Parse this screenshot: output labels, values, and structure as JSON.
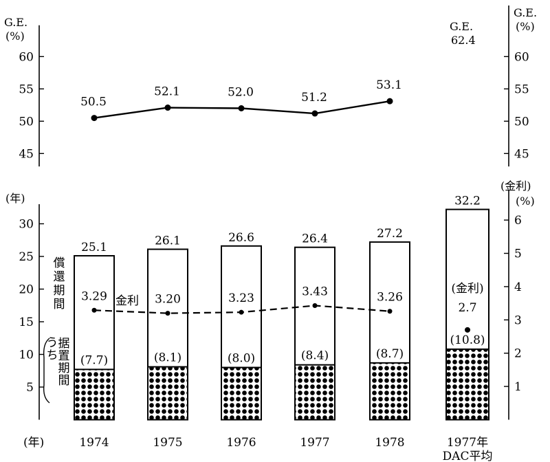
{
  "chart_data": {
    "type": "bar",
    "categories": [
      "1974",
      "1975",
      "1976",
      "1977",
      "1978",
      "1977年DAC平均"
    ],
    "x_tick_labels": [
      [
        "1974"
      ],
      [
        "1975"
      ],
      [
        "1976"
      ],
      [
        "1977"
      ],
      [
        "1978"
      ],
      [
        "1977年",
        "DAC平均"
      ]
    ],
    "x_unit_label": "(年)",
    "upper_panel": {
      "type": "line",
      "left_axis_label": [
        "G.E.",
        "(%)"
      ],
      "right_axis_label": [
        "G.E.",
        "(%)"
      ],
      "ylim": [
        43,
        64
      ],
      "ticks": [
        45,
        50,
        55,
        60
      ],
      "series": [
        {
          "values": [
            50.5,
            52.1,
            52.0,
            51.2,
            53.1
          ],
          "labels": [
            "50.5",
            "52.1",
            "52.0",
            "51.2",
            "53.1"
          ]
        }
      ],
      "dac_annotation": [
        "G.E.",
        "62.4"
      ]
    },
    "lower_panel": {
      "left_axis_label": "(年)",
      "left_ylim": [
        0,
        33
      ],
      "left_ticks": [
        5,
        10,
        15,
        20,
        25,
        30
      ],
      "right_axis_label": [
        "(金利)",
        "(%)"
      ],
      "right_ylim": [
        0,
        6.6
      ],
      "right_ticks": [
        1,
        2,
        3,
        4,
        5,
        6
      ],
      "repayment_period": {
        "label": "償還期間",
        "values": [
          25.1,
          26.1,
          26.6,
          26.4,
          27.2,
          32.2
        ],
        "labels": [
          "25.1",
          "26.1",
          "26.6",
          "26.4",
          "27.2",
          "32.2"
        ]
      },
      "grace_period": {
        "label_prefix": "うち",
        "label": "据置期間",
        "values": [
          7.7,
          8.1,
          8.0,
          8.4,
          8.7,
          10.8
        ],
        "labels": [
          "(7.7)",
          "(8.1)",
          "(8.0)",
          "(8.4)",
          "(8.7)",
          "(10.8)"
        ]
      },
      "interest_rate": {
        "label": "金利",
        "values": [
          3.29,
          3.2,
          3.23,
          3.43,
          3.26
        ],
        "labels": [
          "3.29",
          "3.20",
          "3.23",
          "3.43",
          "3.26"
        ],
        "dac_value": 2.7,
        "dac_label": [
          "(金利)",
          "2.7"
        ]
      }
    }
  }
}
